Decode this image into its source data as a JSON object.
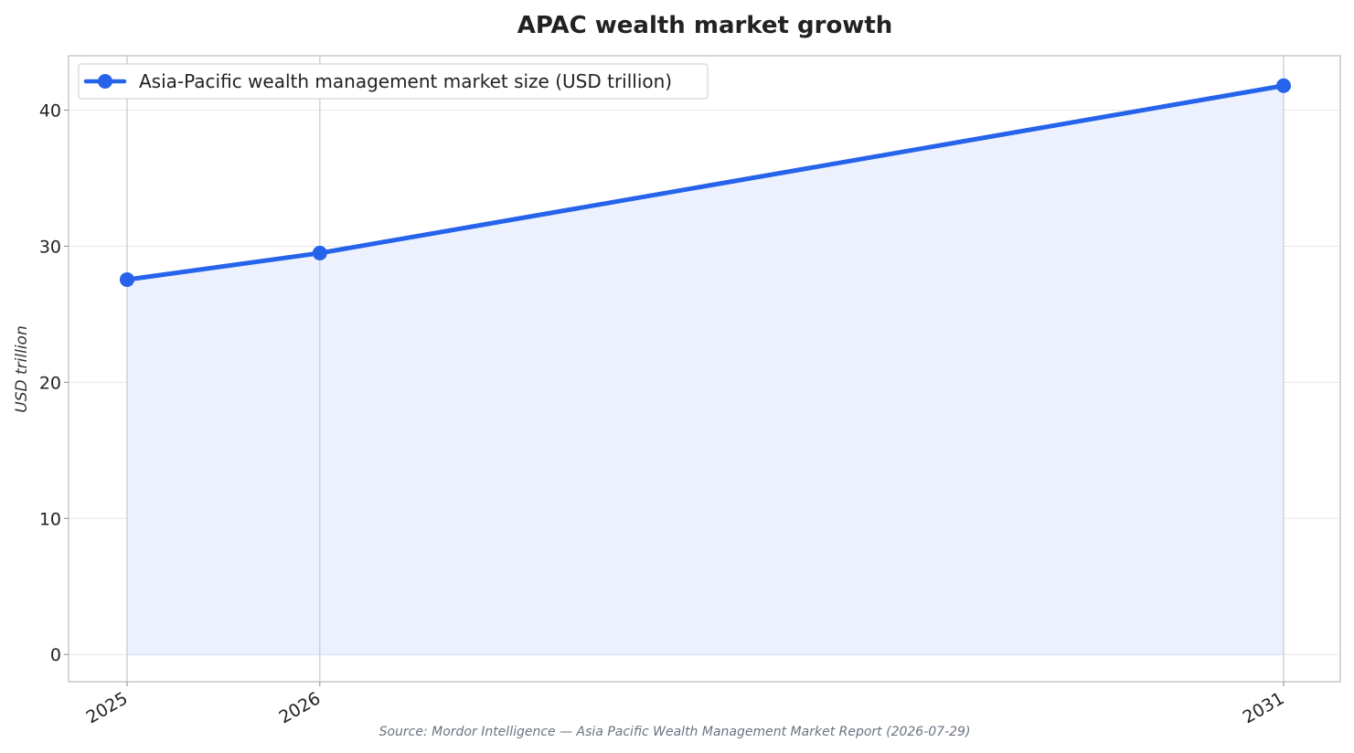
{
  "chart_data": {
    "type": "area",
    "title": "APAC wealth market growth",
    "xlabel": "",
    "ylabel": "USD trillion",
    "categories": [
      "2025",
      "2026",
      "2031"
    ],
    "x": [
      2025,
      2026,
      2031
    ],
    "series": [
      {
        "name": "Asia-Pacific wealth management market size (USD trillion)",
        "values": [
          27.55,
          29.5,
          41.8
        ]
      }
    ],
    "ylim": [
      -2,
      44
    ],
    "yticks": [
      0,
      10,
      20,
      30,
      40
    ],
    "ytick_labels": [
      "0",
      "10",
      "20",
      "30",
      "40"
    ],
    "grid": true,
    "legend": "top-left",
    "source": "Source: Mordor Intelligence — Asia Pacific Wealth Management Market Report (2026-07-29)",
    "colors": {
      "line": "#2563eb",
      "fill": "#ecf1fd",
      "grid": "#e6e6e6",
      "vline": "#c4c9d4",
      "frame": "#c8c8c8"
    }
  }
}
